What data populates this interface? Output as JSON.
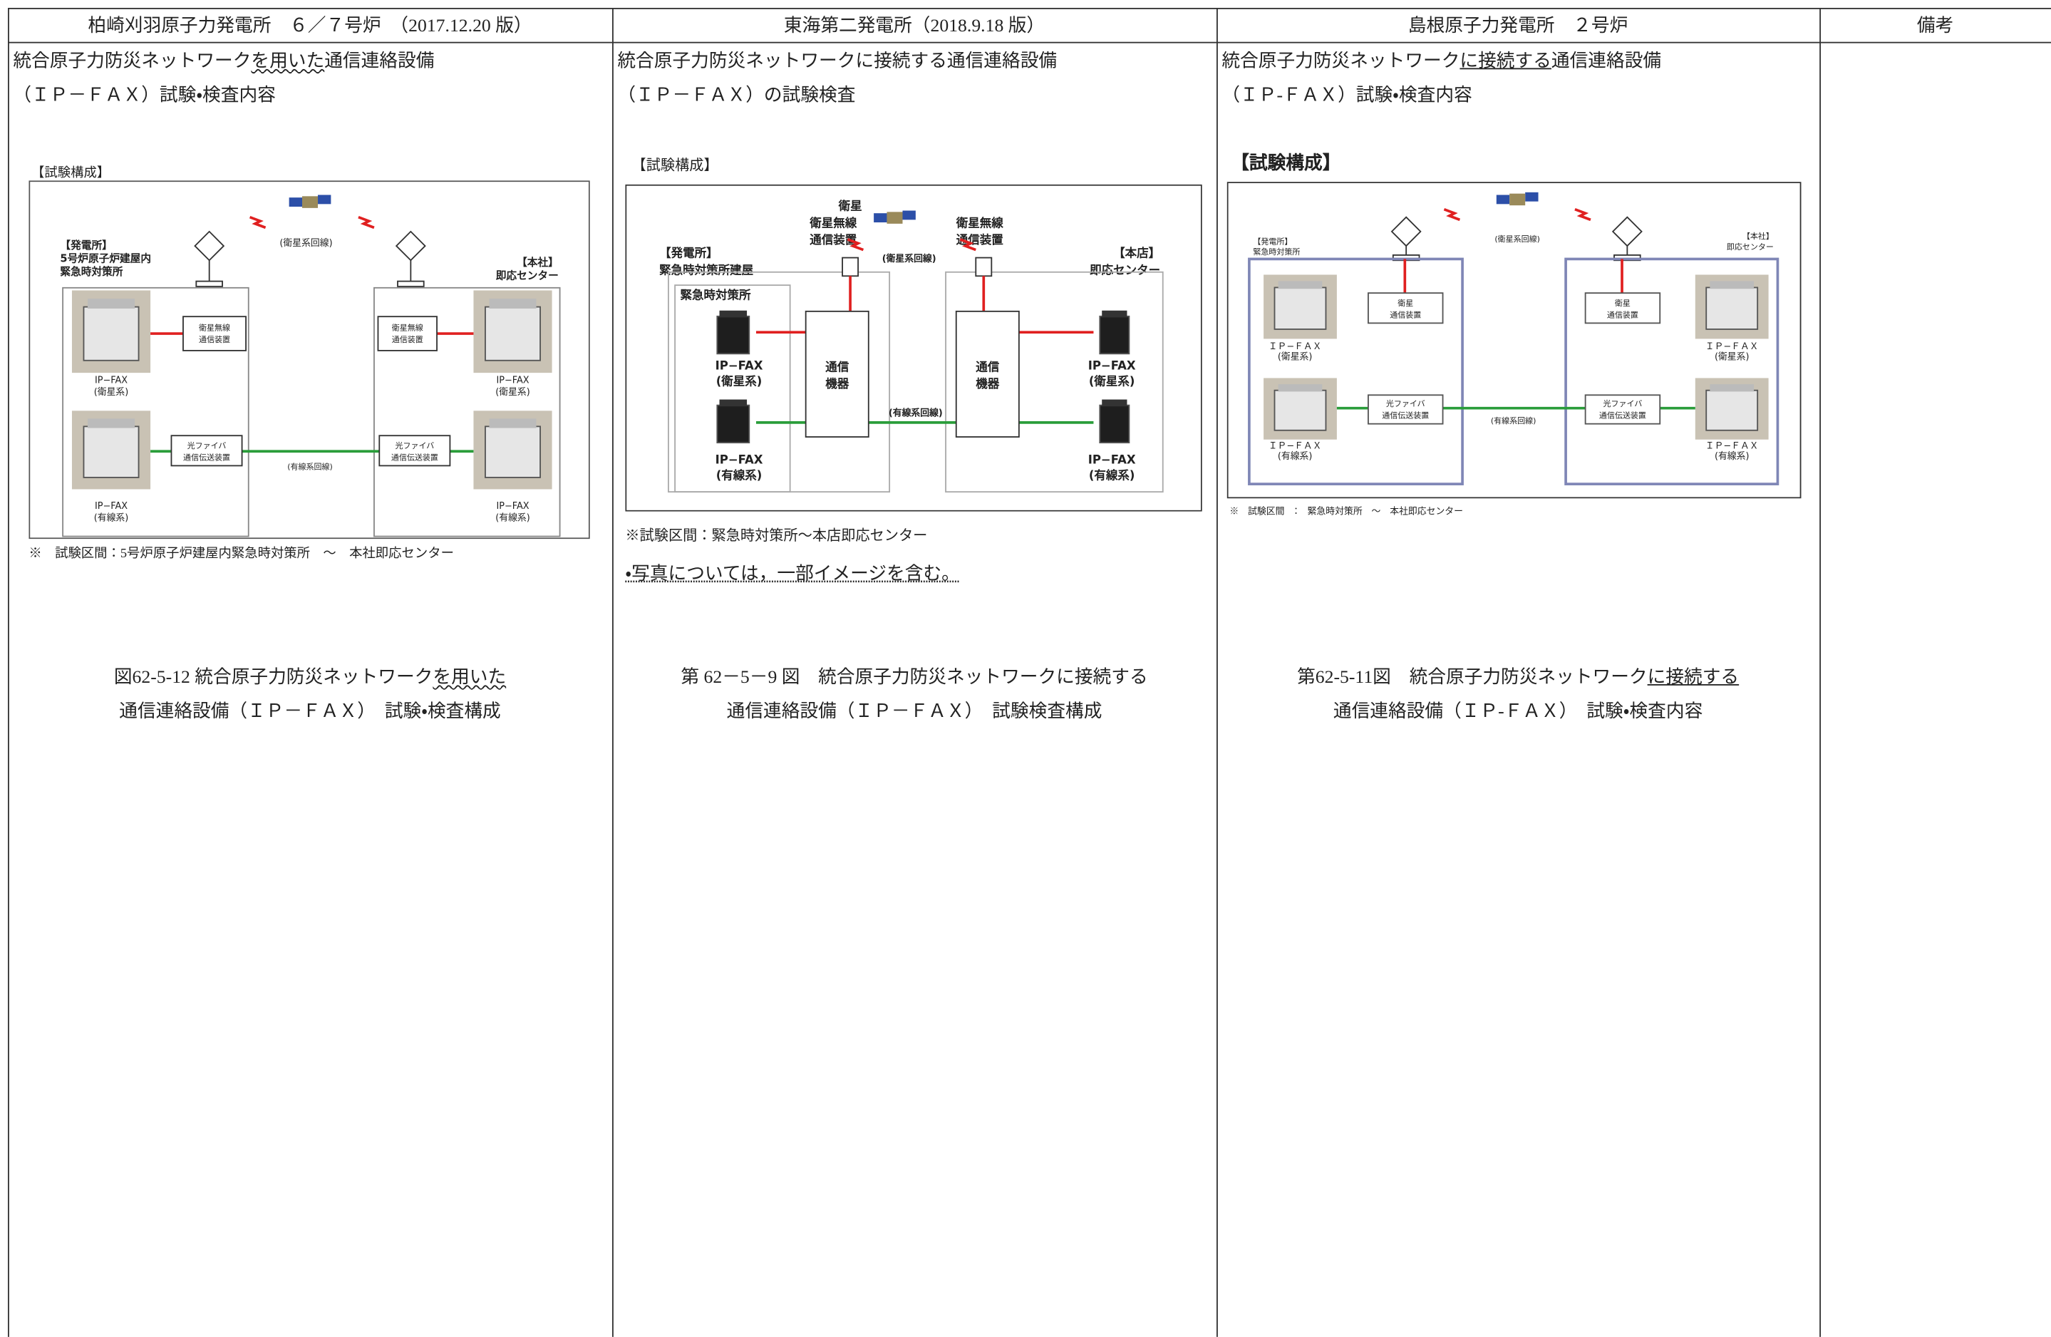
{
  "header": [
    "柏崎刈羽原子力発電所　６／７号炉　（2017.12.20 版）",
    "東海第二発電所（2018.9.18 版）",
    "島根原子力発電所　２号炉",
    "備考"
  ],
  "columns": [
    {
      "intro": [
        [
          "統合原子力防災ネットワーク",
          "を用いた",
          "通信連絡設備"
        ],
        [
          "（ＩＰ－ＦＡＸ）試験・検査内容"
        ]
      ],
      "section": "【試験構成】",
      "diagram": {
        "site": [
          "【発電所】",
          "5号炉原子炉建屋内",
          "緊急時対策所"
        ],
        "hq": [
          "【本社】",
          "即応センター"
        ],
        "satellite_line": "(衛星系回線)",
        "wired_line": "(有線系回線)",
        "satellite_device": [
          [
            "衛星無線",
            "通信装置"
          ],
          [
            "衛星無線",
            "通信装置"
          ]
        ],
        "fiber_device": [
          [
            "光ファイバ",
            "通信伝送装置"
          ],
          [
            "光ファイバ",
            "通信伝送装置"
          ]
        ],
        "fax_satellite": [
          [
            "IP−FAX",
            "(衛星系)"
          ],
          [
            "IP−FAX",
            "(衛星系)"
          ]
        ],
        "fax_wired": [
          [
            "IP−FAX",
            "(有線系)"
          ],
          [
            "IP−FAX",
            "(有線系)"
          ]
        ]
      },
      "notes": [
        "※　試験区間：5号炉原子炉建屋内緊急時対策所　～　本社即応センター"
      ],
      "caption": [
        [
          "図62-5-12 統合原子力防災ネットワーク",
          "を用いた"
        ],
        [
          "通信連絡設備（ＩＰ－ＦＡＸ）　試験・検査構成"
        ]
      ]
    },
    {
      "intro": [
        [
          "統合原子力防災ネットワークに接続する通信連絡設備"
        ],
        [
          "（ＩＰ－ＦＡＸ）の試験検査"
        ]
      ],
      "section": "【試験構成】",
      "diagram": {
        "satellite": "衛星",
        "site": [
          "【発電所】",
          "緊急時対策所建屋"
        ],
        "room": "緊急時対策所",
        "hq": [
          "【本店】",
          "即応センター"
        ],
        "satellite_line": "(衛星系回線)",
        "wired_line": "(有線系回線)",
        "satellite_device": [
          [
            "衛星無線",
            "通信装置"
          ],
          [
            "衛星無線",
            "通信装置"
          ]
        ],
        "comm_device": [
          [
            "通信",
            "機器"
          ],
          [
            "通信",
            "機器"
          ]
        ],
        "fax_satellite": [
          [
            "IP−FAX",
            "(衛星系)"
          ],
          [
            "IP−FAX",
            "(衛星系)"
          ]
        ],
        "fax_wired": [
          [
            "IP−FAX",
            "(有線系)"
          ],
          [
            "IP−FAX",
            "(有線系)"
          ]
        ]
      },
      "notes": [
        "※試験区間：緊急時対策所～本店即応センター",
        "・写真については，一部イメージを含む。"
      ],
      "caption": [
        [
          "第 62－5－9 図　統合原子力防災ネットワークに接続する"
        ],
        [
          "通信連絡設備（ＩＰ－ＦＡＸ）　試験検査構成"
        ]
      ]
    },
    {
      "intro": [
        [
          "統合原子力防災ネットワーク",
          "に接続する",
          "通信連絡設備"
        ],
        [
          "（ＩＰ-ＦＡＸ）試験・検査内容"
        ]
      ],
      "section": "【試験構成】",
      "diagram": {
        "site": [
          "【発電所】",
          "緊急時対策所"
        ],
        "hq": [
          "【本社】",
          "即応センター"
        ],
        "satellite_line": "(衛星系回線)",
        "wired_line": "(有線系回線)",
        "satellite_device": [
          [
            "衛星",
            "通信装置"
          ],
          [
            "衛星",
            "通信装置"
          ]
        ],
        "fiber_device": [
          [
            "光ファイバ",
            "通信伝送装置"
          ],
          [
            "光ファイバ",
            "通信伝送装置"
          ]
        ],
        "fax_satellite": [
          [
            "ＩＰ−ＦＡＸ",
            "(衛星系)"
          ],
          [
            "ＩＰ−ＦＡＸ",
            "(衛星系)"
          ]
        ],
        "fax_wired": [
          [
            "ＩＰ−ＦＡＸ",
            "(有線系)"
          ],
          [
            "ＩＰ−ＦＡＸ",
            "(有線系)"
          ]
        ]
      },
      "notes": [
        "※　試験区間　：　緊急時対策所　～　本社即応センター"
      ],
      "caption": [
        [
          "第62-5-11図　統合原子力防災ネットワーク",
          "に接続する"
        ],
        [
          "通信連絡設備（ＩＰ-ＦＡＸ）　試験・検査内容"
        ]
      ]
    }
  ]
}
